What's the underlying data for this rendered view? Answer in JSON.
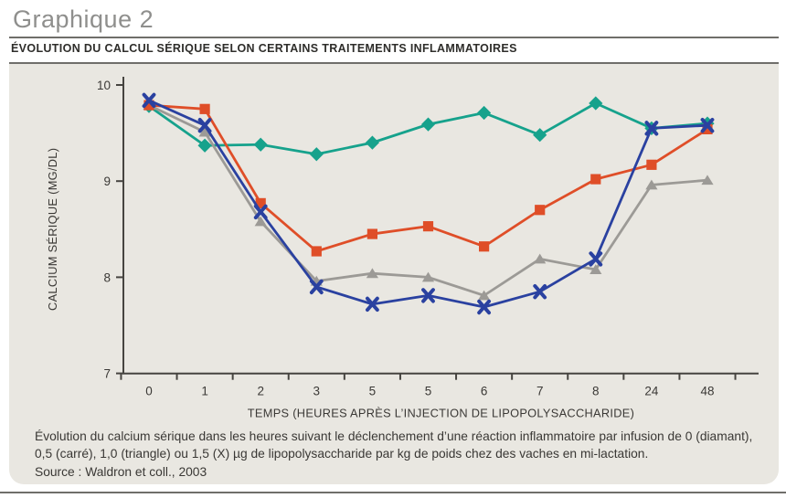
{
  "header": {
    "title": "Graphique 2",
    "subtitle": "ÉVOLUTION DU CALCUL SÉRIQUE SELON CERTAINS TRAITEMENTS INFLAMMATOIRES"
  },
  "chart_data": {
    "type": "line",
    "title": "Graphique 2",
    "xlabel": "TEMPS (HEURES APRÈS L’INJECTION DE LIPOPOLYSACCHARIDE)",
    "ylabel": "CALCIUM SÉRIQUE (MG/DL)",
    "categories": [
      "0",
      "1",
      "2",
      "3",
      "5",
      "5",
      "6",
      "7",
      "8",
      "24",
      "48"
    ],
    "ylim": [
      7,
      10
    ],
    "yticks": [
      10,
      9,
      8,
      7
    ],
    "grid": false,
    "legend_position": "none (markers explained in caption)",
    "series": [
      {
        "name": "0 µg (diamant)",
        "marker": "diamond",
        "color": "#16a28c",
        "values": [
          9.78,
          9.37,
          9.38,
          9.28,
          9.4,
          9.59,
          9.71,
          9.48,
          9.81,
          9.55,
          9.6
        ]
      },
      {
        "name": "0,5 µg (carré)",
        "marker": "square",
        "color": "#df4e28",
        "values": [
          9.79,
          9.75,
          8.77,
          8.27,
          8.45,
          8.53,
          8.32,
          8.7,
          9.02,
          9.17,
          9.54
        ]
      },
      {
        "name": "1,0 µg (triangle)",
        "marker": "triangle",
        "color": "#9c9a96",
        "values": [
          9.79,
          9.51,
          8.58,
          7.96,
          8.04,
          8.0,
          7.81,
          8.19,
          8.08,
          8.96,
          9.01
        ]
      },
      {
        "name": "1,5 µg (X)",
        "marker": "x",
        "color": "#2a41a0",
        "values": [
          9.84,
          9.58,
          8.68,
          7.9,
          7.72,
          7.81,
          7.69,
          7.85,
          8.19,
          9.55,
          9.58
        ]
      }
    ]
  },
  "caption": {
    "body": "Évolution du calcium sérique dans les heures suivant le déclenchement d’une réaction inflammatoire par infusion de 0 (diamant), 0,5 (carré), 1,0 (triangle) ou 1,5 (X) µg de lipopolysaccharide par kg de poids chez des vaches en mi-lactation.",
    "source": "Source : Waldron et coll., 2003"
  },
  "colors": {
    "panel_background": "#e9e7e1",
    "page_background": "#ffffff",
    "axis": "#464440",
    "rules": "#6f6e6a",
    "title_gray": "#8f8f8d",
    "text_dark": "#2e2d2a",
    "series_diamond": "#16a28c",
    "series_square": "#df4e28",
    "series_triangle": "#9c9a96",
    "series_x": "#2a41a0"
  }
}
